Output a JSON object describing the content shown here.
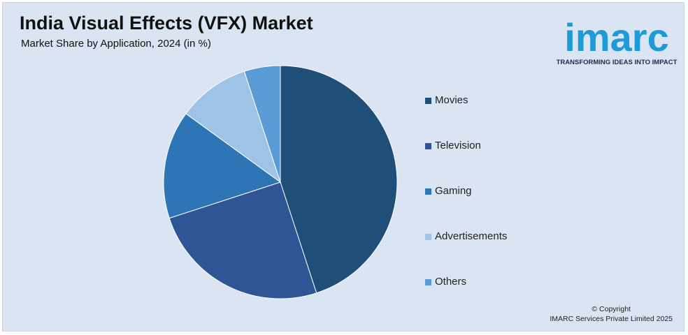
{
  "title": "India Visual Effects (VFX) Market",
  "subtitle": "Market Share by Application, 2024 (in %)",
  "logo": {
    "word": "imarc",
    "tagline": "TRANSFORMING IDEAS INTO IMPACT",
    "color": "#1e9ad6"
  },
  "copyright": {
    "line1": "© Copyright",
    "line2": "IMARC Services Private Limited 2025"
  },
  "chart_data": {
    "type": "pie",
    "title": "India Visual Effects (VFX) Market",
    "subtitle": "Market Share by Application, 2024 (in %)",
    "categories": [
      "Movies",
      "Television",
      "Gaming",
      "Advertisements",
      "Others"
    ],
    "values": [
      45,
      25,
      15,
      10,
      5
    ],
    "colors": [
      "#1f4e79",
      "#2f5597",
      "#2e75b6",
      "#9dc3e6",
      "#5b9bd5"
    ],
    "legend_position": "right",
    "start_angle": "12 o'clock",
    "direction": "clockwise"
  }
}
